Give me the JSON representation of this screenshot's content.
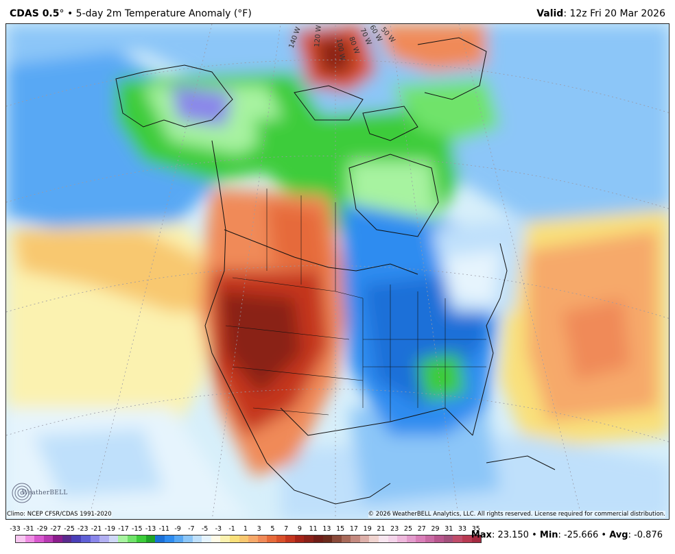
{
  "header": {
    "model": "CDAS 0.5",
    "degree": "°",
    "bullet": "•",
    "product": "5-day 2m Temperature Anomaly (°F)",
    "valid_label": "Valid",
    "valid_time": ": 12z Fri 20 Mar 2026"
  },
  "map": {
    "meridian_labels": [
      "140 W",
      "120 W",
      "100 W",
      "80 W",
      "70 W",
      "60 W",
      "50 W"
    ]
  },
  "footer": {
    "climo": "Climo: NCEP CFSR/CDAS 1991-2020",
    "copyright": "© 2026 WeatherBELL Analytics, LLC. All rights reserved. License required for commercial distribution.",
    "logo_text": "WeatherBELL"
  },
  "colorbar": {
    "ticks": [
      "-33",
      "-31",
      "-29",
      "-27",
      "-25",
      "-23",
      "-21",
      "-19",
      "-17",
      "-15",
      "-13",
      "-11",
      "-9",
      "-7",
      "-5",
      "-3",
      "-1",
      "1",
      "3",
      "5",
      "7",
      "9",
      "11",
      "13",
      "15",
      "17",
      "19",
      "21",
      "23",
      "25",
      "27",
      "29",
      "31",
      "33",
      "35"
    ],
    "colors": [
      "#f7c6f0",
      "#ee8de3",
      "#d858cf",
      "#b83ab3",
      "#8b1d8d",
      "#5a2a8e",
      "#4a3fb8",
      "#5f60d6",
      "#8a86ea",
      "#b2b0f2",
      "#cfd8f6",
      "#a7f3a0",
      "#70e36a",
      "#3ccc3a",
      "#1fa428",
      "#1a70d8",
      "#2e8cf0",
      "#58a8f4",
      "#8cc6f8",
      "#bfe0fb",
      "#e6f4fd",
      "#fffbe8",
      "#fbf2b0",
      "#f9e07a",
      "#f8c870",
      "#f6a96a",
      "#f08a58",
      "#e66a3a",
      "#d9502a",
      "#c4361f",
      "#a52318",
      "#8a2018",
      "#6f1c16",
      "#6a2a1c",
      "#8a4a3a",
      "#a86a5a",
      "#c48a80",
      "#ddb0aa",
      "#f0d4d0",
      "#f8e6f0",
      "#f4d4ea",
      "#eeb8dc",
      "#e39bcc",
      "#d97eb8",
      "#c96aa4",
      "#b8568e",
      "#a3507c",
      "#c04c6a",
      "#b83a52",
      "#a42a40"
    ]
  },
  "stats": {
    "max_label": "Max",
    "max_value": ": 23.150",
    "sep1": " • ",
    "min_label": "Min",
    "min_value": ": -25.666",
    "sep2": " • ",
    "avg_label": "Avg",
    "avg_value": ": -0.876"
  }
}
